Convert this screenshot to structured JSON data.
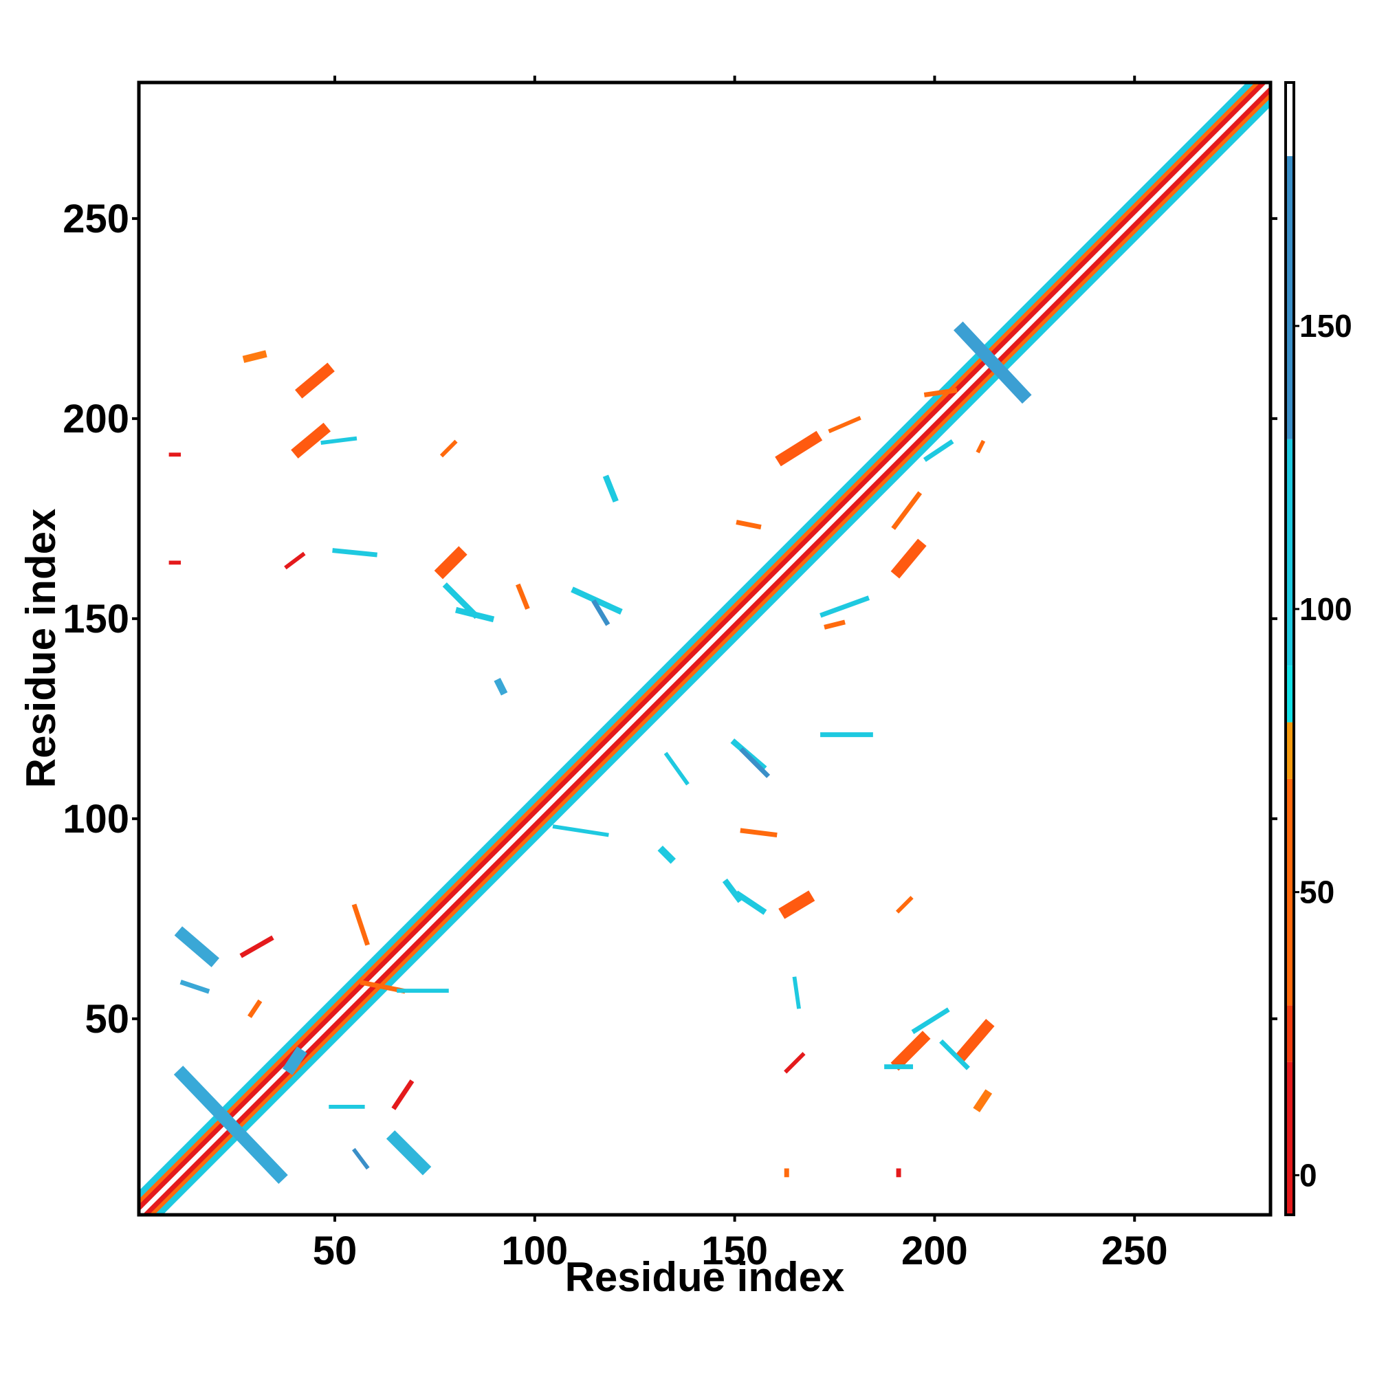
{
  "chart_data": {
    "type": "heatmap",
    "title": "",
    "xlabel": "Residue index",
    "ylabel": "Residue index",
    "xlim": [
      1,
      284
    ],
    "ylim": [
      1,
      284
    ],
    "xticks": [
      50,
      100,
      150,
      200,
      250
    ],
    "yticks": [
      50,
      100,
      150,
      200,
      250
    ],
    "colorbar": {
      "ticks": [
        0,
        50,
        100,
        150
      ],
      "range": [
        -7,
        193
      ],
      "bands": [
        {
          "from": -7,
          "to": 20,
          "color": "#e41a1c"
        },
        {
          "from": 20,
          "to": 30,
          "color": "#f03c10"
        },
        {
          "from": 30,
          "to": 70,
          "color": "#ff6a0d"
        },
        {
          "from": 70,
          "to": 80,
          "color": "#f59a0e"
        },
        {
          "from": 80,
          "to": 90,
          "color": "#12e1e6"
        },
        {
          "from": 90,
          "to": 130,
          "color": "#1ec9e0"
        },
        {
          "from": 130,
          "to": 180,
          "color": "#3a8fc8"
        },
        {
          "from": 180,
          "to": 193,
          "color": "#ffffff"
        }
      ]
    },
    "diagonal_band": {
      "x_range": [
        1,
        284
      ]
    },
    "features": [
      {
        "shape": "segment",
        "from": [
          12,
          36
        ],
        "to": [
          36,
          11
        ],
        "width": 3.2,
        "color": "#38a9d8"
      },
      {
        "shape": "segment",
        "from": [
          12,
          71
        ],
        "to": [
          19,
          65
        ],
        "width": 3,
        "color": "#3aa7d6"
      },
      {
        "shape": "segment",
        "from": [
          65,
          20
        ],
        "to": [
          72,
          13
        ],
        "width": 3,
        "color": "#2fb6db"
      },
      {
        "shape": "segment",
        "from": [
          207,
          222
        ],
        "to": [
          222,
          206
        ],
        "width": 3.2,
        "color": "#3b9fd3"
      },
      {
        "shape": "segment",
        "from": [
          39,
          38
        ],
        "to": [
          41,
          41
        ],
        "width": 3,
        "color": "#3aa7d6"
      },
      {
        "shape": "segment",
        "from": [
          42,
          207
        ],
        "to": [
          48,
          212
        ],
        "width": 2.8,
        "color": "#ff5a10"
      },
      {
        "shape": "segment",
        "from": [
          41,
          192
        ],
        "to": [
          47,
          197
        ],
        "width": 2.8,
        "color": "#ff5a10"
      },
      {
        "shape": "segment",
        "from": [
          77,
          162
        ],
        "to": [
          81,
          166
        ],
        "width": 3,
        "color": "#ff5a10"
      },
      {
        "shape": "segment",
        "from": [
          162,
          190
        ],
        "to": [
          170,
          195
        ],
        "width": 2.8,
        "color": "#ff5a10"
      },
      {
        "shape": "segment",
        "from": [
          191,
          162
        ],
        "to": [
          196,
          168
        ],
        "width": 2.8,
        "color": "#ff5a10"
      },
      {
        "shape": "segment",
        "from": [
          163,
          77
        ],
        "to": [
          168,
          80
        ],
        "width": 3,
        "color": "#ff5a10"
      },
      {
        "shape": "segment",
        "from": [
          191,
          39
        ],
        "to": [
          197,
          45
        ],
        "width": 2.8,
        "color": "#ff5a10"
      },
      {
        "shape": "segment",
        "from": [
          207,
          41
        ],
        "to": [
          213,
          48
        ],
        "width": 2.8,
        "color": "#ff5a10"
      },
      {
        "shape": "segment",
        "from": [
          28,
          215
        ],
        "to": [
          32,
          216
        ],
        "width": 1.8,
        "color": "#ff7a10"
      },
      {
        "shape": "segment",
        "from": [
          211,
          28
        ],
        "to": [
          213,
          31
        ],
        "width": 2,
        "color": "#ff7a10"
      },
      {
        "shape": "segment",
        "from": [
          9,
          191
        ],
        "to": [
          11,
          191
        ],
        "width": 1,
        "color": "#e41a1c"
      },
      {
        "shape": "segment",
        "from": [
          9,
          164
        ],
        "to": [
          11,
          164
        ],
        "width": 1,
        "color": "#e41a1c"
      },
      {
        "shape": "segment",
        "from": [
          38,
          163
        ],
        "to": [
          42,
          166
        ],
        "width": 1,
        "color": "#e41a1c"
      },
      {
        "shape": "segment",
        "from": [
          77,
          191
        ],
        "to": [
          80,
          194
        ],
        "width": 1,
        "color": "#ff6a0d"
      },
      {
        "shape": "segment",
        "from": [
          163,
          37
        ],
        "to": [
          167,
          41
        ],
        "width": 1,
        "color": "#e41a1c"
      },
      {
        "shape": "segment",
        "from": [
          191,
          77
        ],
        "to": [
          194,
          80
        ],
        "width": 1,
        "color": "#ff6a0d"
      },
      {
        "shape": "segment",
        "from": [
          27,
          66
        ],
        "to": [
          34,
          70
        ],
        "width": 1.2,
        "color": "#e41a1c"
      },
      {
        "shape": "segment",
        "from": [
          65,
          28
        ],
        "to": [
          69,
          34
        ],
        "width": 1.2,
        "color": "#e41a1c"
      },
      {
        "shape": "segment",
        "from": [
          29,
          51
        ],
        "to": [
          31,
          54
        ],
        "width": 1.2,
        "color": "#ff6a0d"
      },
      {
        "shape": "segment",
        "from": [
          163,
          11
        ],
        "to": [
          163,
          12
        ],
        "width": 1.2,
        "color": "#ff6a0d"
      },
      {
        "shape": "segment",
        "from": [
          191,
          11
        ],
        "to": [
          191,
          12
        ],
        "width": 1.2,
        "color": "#e41a1c"
      },
      {
        "shape": "segment",
        "from": [
          78,
          158
        ],
        "to": [
          85,
          151
        ],
        "width": 1.5,
        "color": "#1ec9e0"
      },
      {
        "shape": "segment",
        "from": [
          81,
          152
        ],
        "to": [
          89,
          150
        ],
        "width": 1.5,
        "color": "#1ec9e0"
      },
      {
        "shape": "segment",
        "from": [
          151,
          81
        ],
        "to": [
          157,
          77
        ],
        "width": 1.5,
        "color": "#1ec9e0"
      },
      {
        "shape": "segment",
        "from": [
          148,
          84
        ],
        "to": [
          151,
          80
        ],
        "width": 1.5,
        "color": "#1ec9e0"
      },
      {
        "shape": "segment",
        "from": [
          110,
          157
        ],
        "to": [
          121,
          152
        ],
        "width": 1.5,
        "color": "#1ec9e0"
      },
      {
        "shape": "segment",
        "from": [
          115,
          154
        ],
        "to": [
          118,
          149
        ],
        "width": 1.2,
        "color": "#3a8fc8"
      },
      {
        "shape": "segment",
        "from": [
          150,
          119
        ],
        "to": [
          157,
          113
        ],
        "width": 1.5,
        "color": "#1ec9e0"
      },
      {
        "shape": "segment",
        "from": [
          152,
          117
        ],
        "to": [
          158,
          111
        ],
        "width": 1.2,
        "color": "#3a8fc8"
      },
      {
        "shape": "segment",
        "from": [
          118,
          185
        ],
        "to": [
          120,
          180
        ],
        "width": 1.5,
        "color": "#1ec9e0"
      },
      {
        "shape": "segment",
        "from": [
          91,
          134
        ],
        "to": [
          92,
          132
        ],
        "width": 1.8,
        "color": "#3aa7d6"
      },
      {
        "shape": "segment",
        "from": [
          132,
          92
        ],
        "to": [
          134,
          90
        ],
        "width": 1.8,
        "color": "#1ec9e0"
      },
      {
        "shape": "segment",
        "from": [
          172,
          121
        ],
        "to": [
          184,
          121
        ],
        "width": 1.2,
        "color": "#1ec9e0"
      },
      {
        "shape": "segment",
        "from": [
          172,
          151
        ],
        "to": [
          183,
          155
        ],
        "width": 1.2,
        "color": "#1ec9e0"
      },
      {
        "shape": "segment",
        "from": [
          50,
          167
        ],
        "to": [
          60,
          166
        ],
        "width": 1.2,
        "color": "#1ec9e0"
      },
      {
        "shape": "segment",
        "from": [
          47,
          194
        ],
        "to": [
          55,
          195
        ],
        "width": 1,
        "color": "#1ec9e0"
      },
      {
        "shape": "segment",
        "from": [
          195,
          47
        ],
        "to": [
          203,
          52
        ],
        "width": 1.2,
        "color": "#1ec9e0"
      },
      {
        "shape": "segment",
        "from": [
          12,
          59
        ],
        "to": [
          18,
          57
        ],
        "width": 1.2,
        "color": "#3aa7d6"
      },
      {
        "shape": "segment",
        "from": [
          49,
          28
        ],
        "to": [
          57,
          28
        ],
        "width": 1,
        "color": "#1ec9e0"
      },
      {
        "shape": "segment",
        "from": [
          55,
          17
        ],
        "to": [
          58,
          13
        ],
        "width": 1,
        "color": "#3a8fc8"
      },
      {
        "shape": "segment",
        "from": [
          165,
          60
        ],
        "to": [
          166,
          53
        ],
        "width": 1,
        "color": "#1ec9e0"
      },
      {
        "shape": "segment",
        "from": [
          188,
          38
        ],
        "to": [
          194,
          38
        ],
        "width": 1.2,
        "color": "#1ec9e0"
      },
      {
        "shape": "segment",
        "from": [
          202,
          44
        ],
        "to": [
          208,
          38
        ],
        "width": 1.2,
        "color": "#1ec9e0"
      },
      {
        "shape": "segment",
        "from": [
          55,
          78
        ],
        "to": [
          58,
          69
        ],
        "width": 1.2,
        "color": "#ff6a0d"
      },
      {
        "shape": "segment",
        "from": [
          57,
          59
        ],
        "to": [
          67,
          57
        ],
        "width": 1.2,
        "color": "#ff6a0d"
      },
      {
        "shape": "segment",
        "from": [
          78,
          57
        ],
        "to": [
          66,
          57
        ],
        "width": 1,
        "color": "#1ec9e0"
      },
      {
        "shape": "segment",
        "from": [
          133,
          116
        ],
        "to": [
          138,
          109
        ],
        "width": 1,
        "color": "#1ec9e0"
      },
      {
        "shape": "segment",
        "from": [
          105,
          98
        ],
        "to": [
          118,
          96
        ],
        "width": 1,
        "color": "#1ec9e0"
      },
      {
        "shape": "segment",
        "from": [
          152,
          97
        ],
        "to": [
          160,
          96
        ],
        "width": 1.2,
        "color": "#ff6a0d"
      },
      {
        "shape": "segment",
        "from": [
          151,
          174
        ],
        "to": [
          156,
          173
        ],
        "width": 1.2,
        "color": "#ff6a0d"
      },
      {
        "shape": "segment",
        "from": [
          96,
          158
        ],
        "to": [
          98,
          153
        ],
        "width": 1.2,
        "color": "#ff6a0d"
      },
      {
        "shape": "segment",
        "from": [
          173,
          148
        ],
        "to": [
          177,
          149
        ],
        "width": 1.2,
        "color": "#ff6a0d"
      },
      {
        "shape": "segment",
        "from": [
          198,
          190
        ],
        "to": [
          204,
          194
        ],
        "width": 1.2,
        "color": "#1ec9e0"
      },
      {
        "shape": "segment",
        "from": [
          198,
          206
        ],
        "to": [
          205,
          207
        ],
        "width": 1.2,
        "color": "#ff6a0d"
      },
      {
        "shape": "segment",
        "from": [
          190,
          173
        ],
        "to": [
          196,
          181
        ],
        "width": 1.2,
        "color": "#ff6a0d"
      },
      {
        "shape": "segment",
        "from": [
          174,
          197
        ],
        "to": [
          181,
          200
        ],
        "width": 1,
        "color": "#ff6a0d"
      },
      {
        "shape": "segment",
        "from": [
          211,
          192
        ],
        "to": [
          212,
          194
        ],
        "width": 1,
        "color": "#ff6a0d"
      }
    ]
  }
}
